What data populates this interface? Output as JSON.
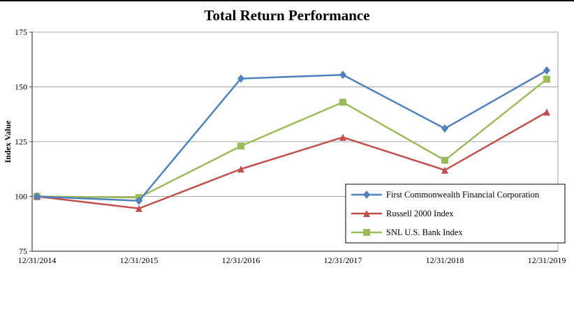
{
  "chart_data": {
    "type": "line",
    "title": "Total Return Performance",
    "xlabel": "",
    "ylabel": "Index Value",
    "ylim": [
      75,
      175
    ],
    "yticks": [
      75,
      100,
      125,
      150,
      175
    ],
    "grid": "horizontal",
    "legend_position": "inside-bottom-right",
    "categories": [
      "12/31/2014",
      "12/31/2015",
      "12/31/2016",
      "12/31/2017",
      "12/31/2018",
      "12/31/2019"
    ],
    "series": [
      {
        "name": "First Commonwealth Financial Corporation",
        "color": "#4F81BD",
        "marker": "diamond",
        "values": [
          100,
          98,
          153.8,
          155.5,
          131,
          157.5
        ]
      },
      {
        "name": "Russell 2000 Index",
        "color": "#C0504D",
        "marker": "triangle",
        "values": [
          100,
          94.5,
          112.5,
          127,
          112,
          138.5
        ]
      },
      {
        "name": "SNL U.S. Bank Index",
        "color": "#9BBB59",
        "marker": "square",
        "values": [
          100,
          99.5,
          123,
          143,
          116.5,
          153.5
        ]
      }
    ]
  }
}
